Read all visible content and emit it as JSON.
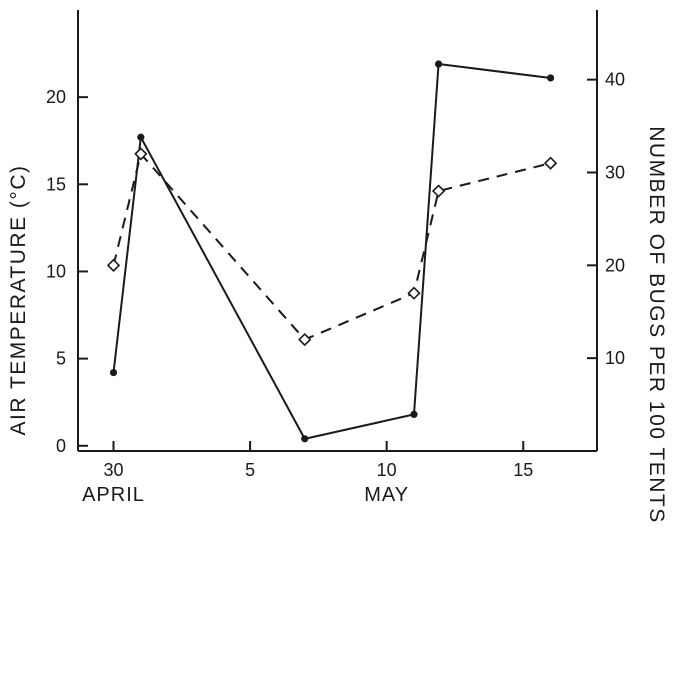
{
  "chart_data": {
    "type": "line",
    "x_axis": {
      "ticks": [
        {
          "value": 30,
          "label": "30"
        },
        {
          "value": 35,
          "label": "5"
        },
        {
          "value": 40,
          "label": "10"
        },
        {
          "value": 45,
          "label": "15"
        }
      ],
      "range": [
        28.7,
        47.7
      ],
      "month_labels": [
        {
          "text": "APRIL",
          "value": 30
        },
        {
          "text": "MAY",
          "value": 40
        }
      ]
    },
    "y_left": {
      "label": "AIR TEMPERATURE (°C)",
      "range": [
        -0.3,
        25
      ],
      "ticks": [
        0,
        5,
        10,
        15,
        20
      ]
    },
    "y_right": {
      "label": "NUMBER OF BUGS PER 100 TENTS",
      "range": [
        0,
        47.5
      ],
      "ticks": [
        10,
        20,
        30,
        40
      ]
    },
    "series": [
      {
        "axis": "left",
        "style": "solid",
        "marker": "filled-circle",
        "color": "#1a1a1a",
        "points": [
          {
            "x": 30,
            "y": 4.2
          },
          {
            "x": 31,
            "y": 17.7
          },
          {
            "x": 37,
            "y": 0.4
          },
          {
            "x": 41,
            "y": 1.8
          },
          {
            "x": 41.9,
            "y": 21.9
          },
          {
            "x": 46,
            "y": 21.1
          }
        ]
      },
      {
        "axis": "right",
        "style": "dashed",
        "marker": "open-diamond",
        "color": "#1a1a1a",
        "points": [
          {
            "x": 30,
            "y": 20
          },
          {
            "x": 31,
            "y": 32
          },
          {
            "x": 37,
            "y": 12
          },
          {
            "x": 41,
            "y": 17
          },
          {
            "x": 41.9,
            "y": 28
          },
          {
            "x": 46,
            "y": 31
          }
        ]
      }
    ]
  }
}
